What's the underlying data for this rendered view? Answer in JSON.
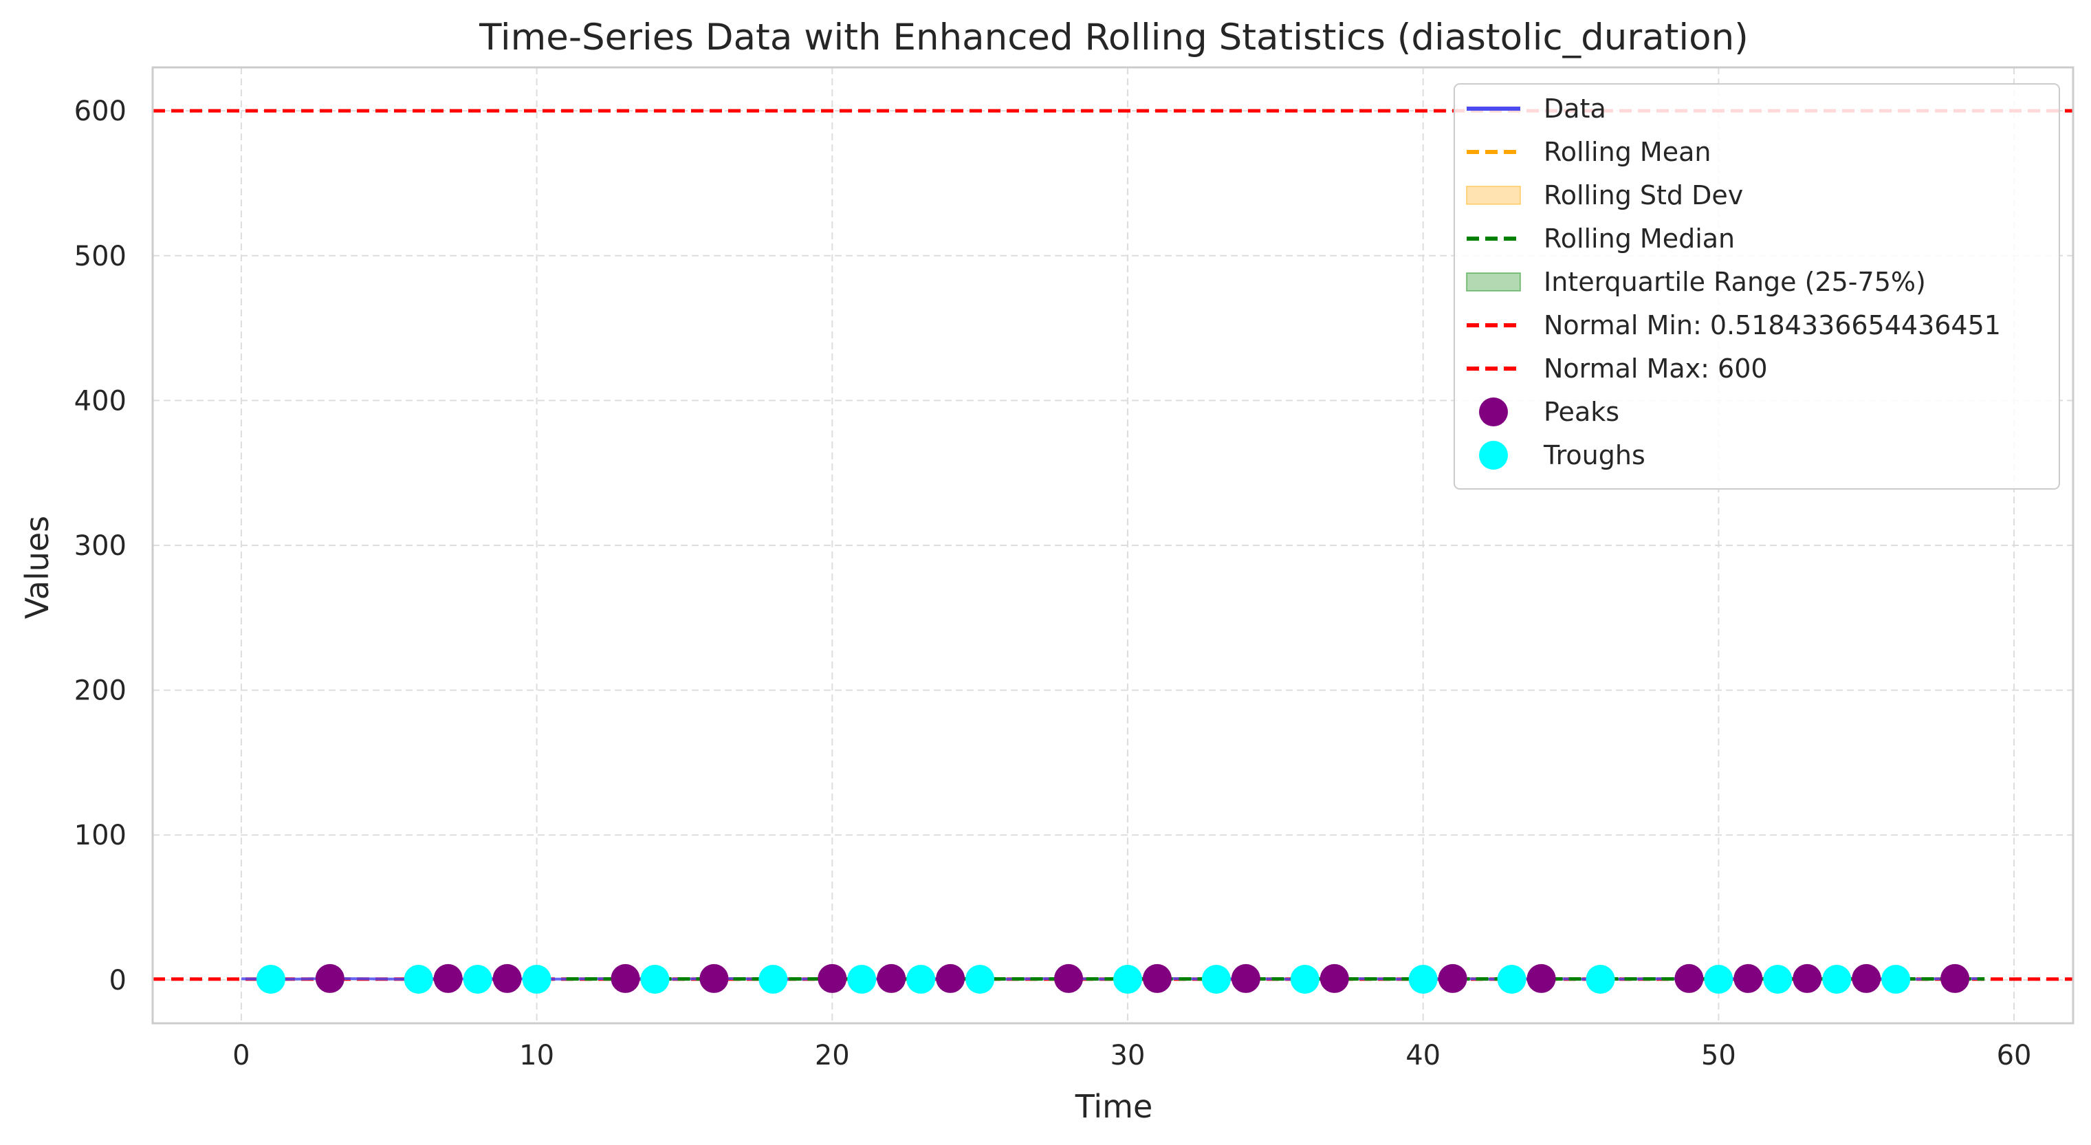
{
  "chart_data": {
    "type": "line",
    "title": "Time-Series Data with Enhanced Rolling Statistics (diastolic_duration)",
    "xlabel": "Time",
    "ylabel": "Values",
    "xlim": [
      -3,
      62
    ],
    "ylim": [
      -30,
      630
    ],
    "x_ticks": [
      0,
      10,
      20,
      30,
      40,
      50,
      60
    ],
    "y_ticks": [
      0,
      100,
      200,
      300,
      400,
      500,
      600
    ],
    "grid": true,
    "legend_position": "top-right",
    "legend": [
      {
        "label": "Data",
        "kind": "line",
        "color": "#4b4bf0",
        "dash": "solid"
      },
      {
        "label": "Rolling Mean",
        "kind": "line",
        "color": "#ffa500",
        "dash": "dashed"
      },
      {
        "label": "Rolling Std Dev",
        "kind": "patch",
        "color": "#ffa500"
      },
      {
        "label": "Rolling Median",
        "kind": "line",
        "color": "#008000",
        "dash": "dashed"
      },
      {
        "label": "Interquartile Range (25-75%)",
        "kind": "patch",
        "color": "#008000"
      },
      {
        "label": "Normal Min: 0.5184336654436451",
        "kind": "line",
        "color": "#ff0000",
        "dash": "dashed"
      },
      {
        "label": "Normal Max: 600",
        "kind": "line",
        "color": "#ff0000",
        "dash": "dashed"
      },
      {
        "label": "Peaks",
        "kind": "marker",
        "color": "#800080"
      },
      {
        "label": "Troughs",
        "kind": "marker",
        "color": "#00ffff"
      }
    ],
    "normal_min": 0.5184336654436451,
    "normal_max": 600,
    "series": [
      {
        "name": "Data",
        "x": [
          0,
          1,
          2,
          3,
          4,
          5,
          6,
          7,
          8,
          9,
          10,
          11,
          12,
          13,
          14,
          15,
          16,
          17,
          18,
          19,
          20,
          21,
          22,
          23,
          24,
          25,
          26,
          27,
          28,
          29,
          30,
          31,
          32,
          33,
          34,
          35,
          36,
          37,
          38,
          39,
          40,
          41,
          42,
          43,
          44,
          45,
          46,
          47,
          48,
          49,
          50,
          51,
          52,
          53,
          54,
          55,
          56,
          57,
          58,
          59
        ],
        "values": [
          0.7,
          0.4,
          0.6,
          0.9,
          0.7,
          0.6,
          0.4,
          0.9,
          0.4,
          0.9,
          0.4,
          0.6,
          0.7,
          0.9,
          0.4,
          0.6,
          0.9,
          0.7,
          0.4,
          0.6,
          0.9,
          0.4,
          0.9,
          0.4,
          0.9,
          0.4,
          0.6,
          0.7,
          0.9,
          0.6,
          0.4,
          0.9,
          0.7,
          0.4,
          0.9,
          0.6,
          0.4,
          0.9,
          0.7,
          0.6,
          0.4,
          0.9,
          0.6,
          0.4,
          0.9,
          0.6,
          0.4,
          0.6,
          0.7,
          0.9,
          0.4,
          0.9,
          0.4,
          0.9,
          0.4,
          0.9,
          0.4,
          0.6,
          0.9,
          0.7
        ]
      },
      {
        "name": "Rolling Mean",
        "x_start": 11,
        "x_end": 59,
        "value": 0.65
      },
      {
        "name": "Rolling Median",
        "x_start": 11,
        "x_end": 59,
        "value": 0.62
      }
    ],
    "peaks": {
      "x": [
        3,
        7,
        9,
        13,
        16,
        20,
        22,
        24,
        28,
        31,
        34,
        37,
        41,
        44,
        49,
        51,
        53,
        55,
        58
      ],
      "y": 0.9
    },
    "troughs": {
      "x": [
        1,
        6,
        8,
        10,
        14,
        18,
        21,
        23,
        25,
        30,
        33,
        36,
        40,
        43,
        46,
        50,
        52,
        54,
        56
      ],
      "y": 0.4
    }
  }
}
